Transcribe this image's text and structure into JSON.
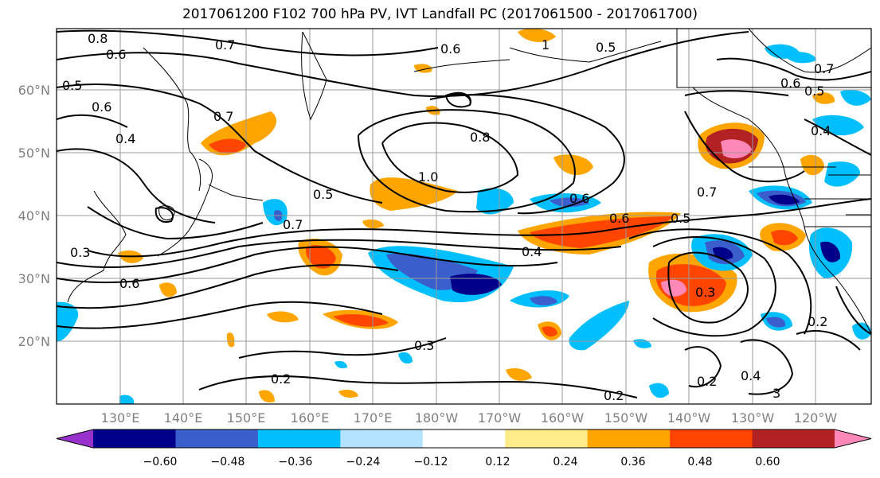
{
  "title": "2017061200 F102 700 hPa PV, IVT Landfall PC (2017061500 - 2017061700)",
  "map": {
    "lat_labels": [
      "60°N",
      "50°N",
      "40°N",
      "30°N",
      "20°N"
    ],
    "lon_labels": [
      "130°E",
      "140°E",
      "150°E",
      "160°E",
      "170°E",
      "180°W",
      "170°W",
      "160°W",
      "150°W",
      "140°W",
      "130°W",
      "120°W"
    ],
    "contour_labels": [
      {
        "text": "0.8"
      },
      {
        "text": "0.6"
      },
      {
        "text": "0.5"
      },
      {
        "text": "0.6"
      },
      {
        "text": "0.4"
      },
      {
        "text": "0.7"
      },
      {
        "text": "0.7"
      },
      {
        "text": "0.6"
      },
      {
        "text": "1"
      },
      {
        "text": "0.5"
      },
      {
        "text": "0.6"
      },
      {
        "text": "0.5"
      },
      {
        "text": "0.7"
      },
      {
        "text": "0.4"
      },
      {
        "text": "0.8"
      },
      {
        "text": "1.0"
      },
      {
        "text": "0.5"
      },
      {
        "text": "0.7"
      },
      {
        "text": "0.6"
      },
      {
        "text": "0.7"
      },
      {
        "text": "0.6"
      },
      {
        "text": "0.5"
      },
      {
        "text": "0.4"
      },
      {
        "text": "0.3"
      },
      {
        "text": "0.6"
      },
      {
        "text": "0.3"
      },
      {
        "text": "0.3"
      },
      {
        "text": "0.2"
      },
      {
        "text": "0.2"
      },
      {
        "text": "0.2"
      },
      {
        "text": "0.4"
      },
      {
        "text": "3"
      },
      {
        "text": "0.2"
      }
    ]
  },
  "colorbar": {
    "colors": [
      "#9932cc",
      "#00008b",
      "#3a5fcd",
      "#00bfff",
      "#b2e2ff",
      "#ffffff",
      "#ffeb8a",
      "#ffa500",
      "#ff4500",
      "#b22222",
      "#ff88b8"
    ],
    "tick_labels": [
      "−0.60",
      "−0.48",
      "−0.36",
      "−0.24",
      "−0.12",
      "0.12",
      "0.24",
      "0.36",
      "0.48",
      "0.60"
    ]
  }
}
